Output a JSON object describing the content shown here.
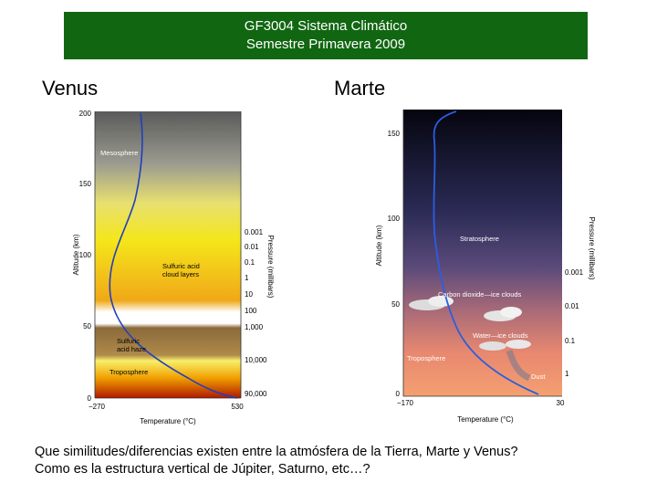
{
  "header": {
    "line1": "GF3004 Sistema Climático",
    "line2": "Semestre Primavera 2009"
  },
  "labels": {
    "venus": "Venus",
    "marte": "Marte"
  },
  "venus": {
    "ylabel": "Altitude (km)",
    "xlabel": "Temperature (°C)",
    "rlabel": "Pressure (millibars)",
    "alt_ticks": [
      "200",
      "150",
      "100",
      "50",
      "0"
    ],
    "temp_ticks": [
      "−270",
      "530"
    ],
    "pressure_ticks": [
      "0.001",
      "0.01",
      "0.1",
      "1",
      "10",
      "100",
      "1,000",
      "10,000",
      "90,000"
    ],
    "layers": {
      "mesosphere": "Mesosphere",
      "cloud1": "Sulfuric acid",
      "cloud2": "cloud layers",
      "haze1": "Sulfuric",
      "haze2": "acid haze",
      "troposphere": "Troposphere"
    }
  },
  "marte": {
    "ylabel": "Altitude (km)",
    "xlabel": "Temperature (°C)",
    "rlabel": "Pressure (millibars)",
    "alt_ticks": [
      "150",
      "100",
      "50",
      "0"
    ],
    "temp_ticks": [
      "−170",
      "30"
    ],
    "pressure_ticks": [
      "0.001",
      "0.01",
      "0.1",
      "1"
    ],
    "layers": {
      "stratosphere": "Stratosphere",
      "co2": "Carbon dioxide—ice clouds",
      "water": "Water—ice clouds",
      "troposphere": "Troposphere",
      "dust": "Dust"
    }
  },
  "question": {
    "line1": "Que similitudes/diferencias existen entre la atmósfera de la Tierra, Marte y Venus?",
    "line2": "Como es la estructura vertical de Júpiter, Saturno, etc…?"
  }
}
